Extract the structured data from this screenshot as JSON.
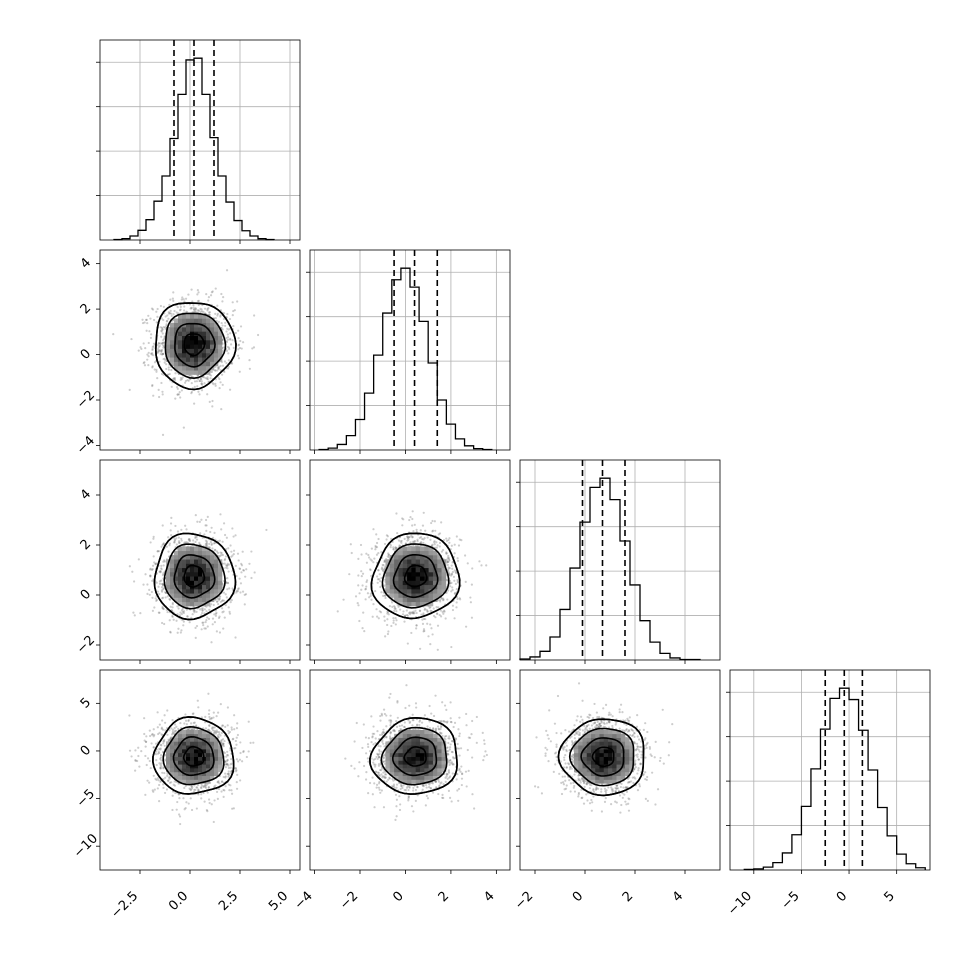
{
  "chart_data": {
    "type": "corner",
    "grid": true,
    "parameters": [
      {
        "index": 0,
        "range": [
          -4.5,
          5.5
        ],
        "ticks": [
          -2.5,
          0.0,
          2.5,
          5.0
        ],
        "tick_labels": [
          "−2.5",
          "0.0",
          "2.5",
          "5.0"
        ],
        "quantiles": [
          -0.8,
          0.2,
          1.2
        ],
        "mean": 0.2,
        "sd": 1.0
      },
      {
        "index": 1,
        "range": [
          -4.2,
          4.6
        ],
        "ticks": [
          -4,
          -2,
          0,
          2,
          4
        ],
        "tick_labels": [
          "−4",
          "−2",
          "0",
          "2",
          "4"
        ],
        "quantiles": [
          -0.5,
          0.4,
          1.4
        ],
        "mean": 0.45,
        "sd": 0.95
      },
      {
        "index": 2,
        "range": [
          -2.6,
          5.4
        ],
        "ticks": [
          -2,
          0,
          2,
          4
        ],
        "tick_labels": [
          "−2",
          "0",
          "2",
          "4"
        ],
        "quantiles": [
          -0.1,
          0.7,
          1.6
        ],
        "mean": 0.75,
        "sd": 0.85
      },
      {
        "index": 3,
        "range": [
          -12.5,
          8.5
        ],
        "ticks": [
          -10,
          -5,
          0,
          5
        ],
        "tick_labels": [
          "−10",
          "−5",
          "0",
          "5"
        ],
        "quantiles": [
          -2.5,
          -0.5,
          1.4
        ],
        "mean": -0.6,
        "sd": 2.0
      }
    ],
    "histograms": [
      {
        "param": 0,
        "bin_edges": [
          -3.8,
          -3.4,
          -3.0,
          -2.6,
          -2.2,
          -1.8,
          -1.4,
          -1.0,
          -0.6,
          -0.2,
          0.2,
          0.6,
          1.0,
          1.4,
          1.8,
          2.2,
          2.6,
          3.0,
          3.4,
          3.8,
          4.2
        ],
        "counts": [
          1,
          3,
          9,
          22,
          46,
          88,
          145,
          230,
          330,
          408,
          412,
          330,
          232,
          145,
          86,
          44,
          21,
          9,
          3,
          1
        ]
      },
      {
        "param": 1,
        "bin_edges": [
          -3.8,
          -3.4,
          -3.0,
          -2.6,
          -2.2,
          -1.8,
          -1.4,
          -1.0,
          -0.6,
          -0.2,
          0.2,
          0.6,
          1.0,
          1.4,
          1.8,
          2.2,
          2.6,
          3.0,
          3.4,
          3.8
        ],
        "counts": [
          1,
          4,
          12,
          31,
          66,
          123,
          205,
          296,
          368,
          393,
          352,
          278,
          188,
          108,
          56,
          24,
          9,
          3,
          1
        ]
      },
      {
        "param": 2,
        "bin_edges": [
          -2.6,
          -2.2,
          -1.8,
          -1.4,
          -1.0,
          -0.6,
          -0.2,
          0.2,
          0.6,
          1.0,
          1.4,
          1.8,
          2.2,
          2.6,
          3.0,
          3.4,
          3.8,
          4.2,
          4.6
        ],
        "counts": [
          2,
          6,
          17,
          45,
          99,
          180,
          270,
          338,
          356,
          314,
          233,
          147,
          77,
          35,
          13,
          4,
          1,
          1
        ]
      },
      {
        "param": 3,
        "bin_edges": [
          -11.0,
          -10.0,
          -9.0,
          -8.0,
          -7.0,
          -6.0,
          -5.0,
          -4.0,
          -3.0,
          -2.0,
          -1.0,
          0.0,
          1.0,
          2.0,
          3.0,
          4.0,
          5.0,
          6.0,
          7.0,
          8.0
        ],
        "counts": [
          1,
          2,
          5,
          13,
          30,
          62,
          112,
          178,
          248,
          302,
          320,
          300,
          246,
          176,
          110,
          60,
          28,
          11,
          4
        ]
      }
    ],
    "pairs": [
      {
        "x": 0,
        "y": 1,
        "rho": 0.0
      },
      {
        "x": 0,
        "y": 2,
        "rho": 0.0
      },
      {
        "x": 1,
        "y": 2,
        "rho": 0.05
      },
      {
        "x": 0,
        "y": 3,
        "rho": 0.0
      },
      {
        "x": 1,
        "y": 3,
        "rho": 0.05
      },
      {
        "x": 2,
        "y": 3,
        "rho": 0.0
      }
    ],
    "contour_levels_sigma": [
      0.5,
      1.0,
      1.5,
      2.0
    ]
  }
}
